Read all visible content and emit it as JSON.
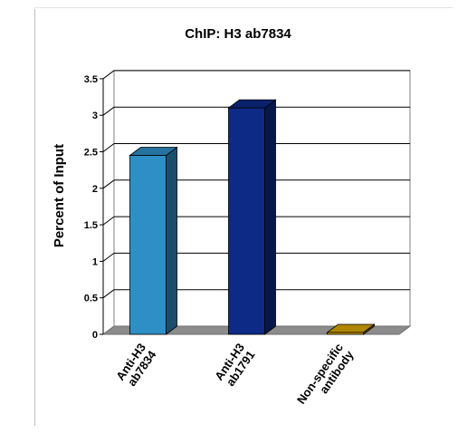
{
  "chart_data": {
    "type": "bar",
    "title": "ChIP: H3 ab7834",
    "xlabel": "",
    "ylabel": "Percent of  Input",
    "ylim": [
      0,
      3.5
    ],
    "yticks": [
      "0",
      "0.5",
      "1",
      "1.5",
      "2",
      "2.5",
      "3",
      "3.5"
    ],
    "grid": true,
    "three_d": true,
    "categories": [
      {
        "lines": [
          "Anti-H3",
          "ab7834"
        ]
      },
      {
        "lines": [
          "Anti-H3",
          "ab1791"
        ]
      },
      {
        "lines": [
          "Non-specific",
          "antibody"
        ]
      }
    ],
    "values": [
      2.45,
      3.1,
      0.02
    ],
    "colors": [
      "#2e8fc6",
      "#0d2a86",
      "#d9a800"
    ]
  }
}
